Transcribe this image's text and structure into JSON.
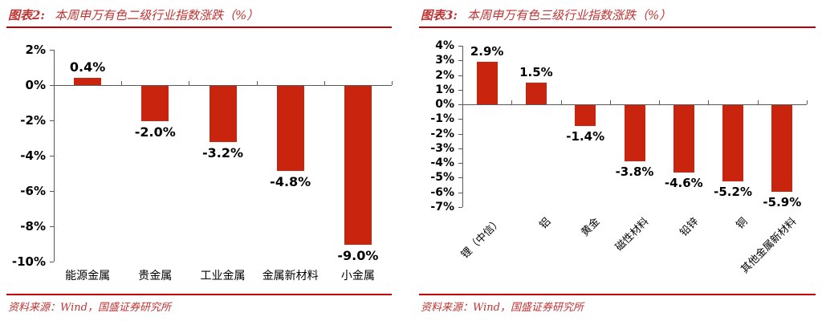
{
  "colors": {
    "bar": "#C9240D",
    "accent_red": "#C00000",
    "title_red": "#BF3333",
    "axis_gray": "#595959",
    "label_black": "#000000"
  },
  "figures": [
    {
      "label": "图表2:",
      "title": "本周申万有色二级行业指数涨跌（%）",
      "source": "资料来源：Wind，国盛证券研究所"
    },
    {
      "label": "图表3:",
      "title": "本周申万有色三级行业指数涨跌（%）",
      "source": "资料来源：Wind，国盛证券研究所"
    }
  ],
  "chart_data": [
    {
      "type": "bar",
      "title": "图表2: 本周申万有色二级行业指数涨跌（%）",
      "categories": [
        "能源金属",
        "贵金属",
        "工业金属",
        "金属新材料",
        "小金属"
      ],
      "values": [
        0.4,
        -2.0,
        -3.2,
        -4.8,
        -9.0
      ],
      "data_labels": [
        "0.4%",
        "-2.0%",
        "-3.2%",
        "-4.8%",
        "-9.0%"
      ],
      "xlabel": "",
      "ylabel": "",
      "ylim": [
        -10,
        2
      ],
      "ytick_step": 2,
      "ytick_labels": [
        "2%",
        "0%",
        "-2%",
        "-4%",
        "-6%",
        "-8%",
        "-10%"
      ],
      "grid": false,
      "legend": false,
      "bar_color": "#C9240D",
      "xlabel_rotation": 0
    },
    {
      "type": "bar",
      "title": "图表3: 本周申万有色三级行业指数涨跌（%）",
      "categories": [
        "锂（中信）",
        "铝",
        "黄金",
        "磁性材料",
        "铅锌",
        "铜",
        "其他金属新材料"
      ],
      "values": [
        2.9,
        1.5,
        -1.4,
        -3.8,
        -4.6,
        -5.2,
        -5.9
      ],
      "data_labels": [
        "2.9%",
        "1.5%",
        "-1.4%",
        "-3.8%",
        "-4.6%",
        "-5.2%",
        "-5.9%"
      ],
      "xlabel": "",
      "ylabel": "",
      "ylim": [
        -7,
        4
      ],
      "ytick_step": 1,
      "ytick_labels": [
        "4%",
        "3%",
        "2%",
        "1%",
        "0%",
        "-1%",
        "-2%",
        "-3%",
        "-4%",
        "-5%",
        "-6%",
        "-7%"
      ],
      "grid": false,
      "legend": false,
      "bar_color": "#C9240D",
      "xlabel_rotation": 45
    }
  ]
}
